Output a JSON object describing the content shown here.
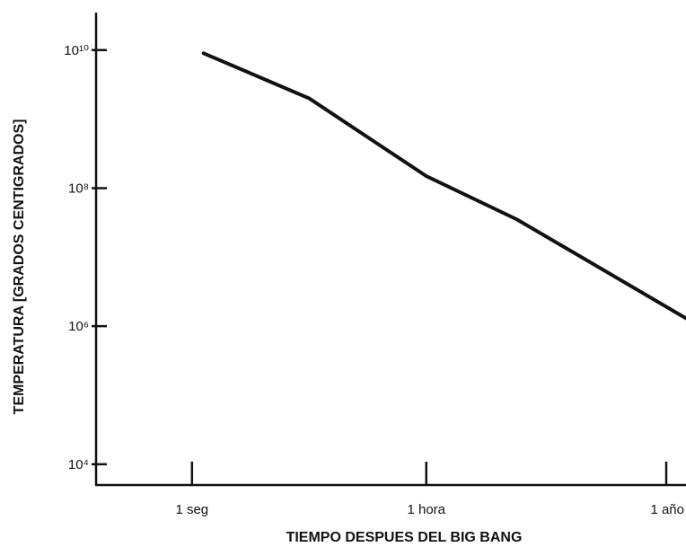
{
  "chart_data": {
    "type": "line",
    "xlabel": "TIEMPO DESPUES DEL BIG BANG",
    "ylabel": "TEMPERATURA [GRADOS CENTIGRADOS]",
    "x_scale": "log",
    "y_scale": "log",
    "x_ticks": [
      {
        "label": "1 seg",
        "seconds": 1
      },
      {
        "label": "1 hora",
        "seconds": 3600
      },
      {
        "label": "1 año",
        "seconds": 31536000
      }
    ],
    "y_ticks": [
      {
        "label": "10¹⁰",
        "value": 10000000000
      },
      {
        "label": "10⁸",
        "value": 100000000
      },
      {
        "label": "10⁶",
        "value": 1000000
      },
      {
        "label": "10⁴",
        "value": 10000
      }
    ],
    "xlim_seconds": [
      0.035,
      31536000
    ],
    "ylim": [
      5000,
      35000000000
    ],
    "series": [
      {
        "x": [
          1.5,
          60,
          3600,
          86400,
          31536000
        ],
        "values": [
          9000000000,
          2000000000,
          150000000,
          35000000,
          1300000
        ]
      }
    ],
    "grid": false,
    "legend": "none"
  }
}
